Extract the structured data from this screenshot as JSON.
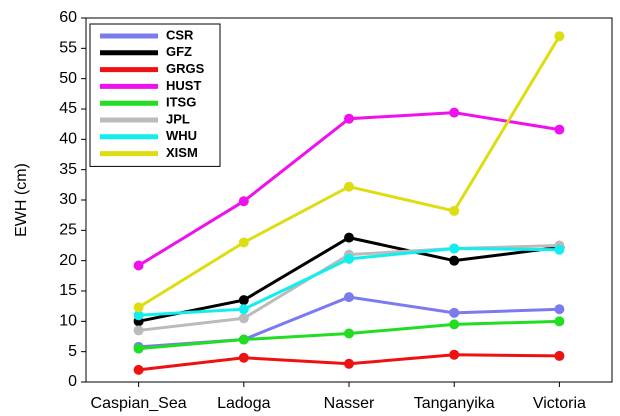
{
  "chart_data": {
    "type": "line",
    "y_label": "EWH (cm)",
    "categories": [
      "Caspian_Sea",
      "Ladoga",
      "Nasser",
      "Tanganyika",
      "Victoria"
    ],
    "series": [
      {
        "name": "CSR",
        "color": "#7b7bf0",
        "values": [
          5.8,
          7,
          14,
          11.4,
          12
        ]
      },
      {
        "name": "GFZ",
        "color": "#000000",
        "values": [
          10,
          13.5,
          23.8,
          20,
          22.2
        ]
      },
      {
        "name": "GRGS",
        "color": "#ee1111",
        "values": [
          2,
          4,
          3,
          4.5,
          4.3
        ]
      },
      {
        "name": "HUST",
        "color": "#ee11ee",
        "values": [
          19.2,
          29.8,
          43.4,
          44.4,
          41.6
        ]
      },
      {
        "name": "ITSG",
        "color": "#22dd22",
        "values": [
          5.5,
          7,
          8,
          9.5,
          10
        ]
      },
      {
        "name": "JPL",
        "color": "#bbbbbb",
        "values": [
          8.5,
          10.5,
          21,
          22,
          22.5
        ]
      },
      {
        "name": "WHU",
        "color": "#11eeee",
        "values": [
          11,
          12,
          20.3,
          22,
          21.8
        ]
      },
      {
        "name": "XISM",
        "color": "#dddd11",
        "values": [
          12.3,
          23,
          32.2,
          28.2,
          57
        ]
      }
    ],
    "ylim": [
      0,
      60
    ],
    "yticks": [
      0,
      5,
      10,
      15,
      20,
      25,
      30,
      35,
      40,
      45,
      50,
      55,
      60
    ],
    "legend": "upper-left"
  }
}
